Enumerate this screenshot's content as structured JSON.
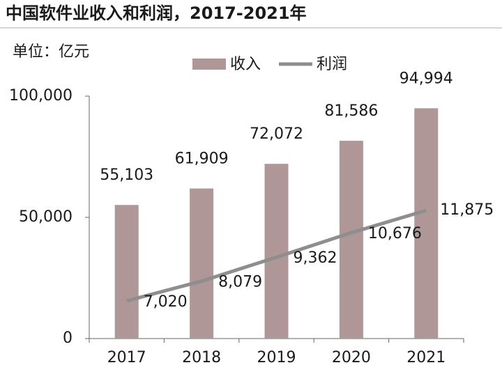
{
  "chart_data": {
    "type": "bar_line",
    "title": "中国软件业收入和利润，2017-2021年",
    "unit_label": "单位：亿元",
    "categories": [
      "2017",
      "2018",
      "2019",
      "2020",
      "2021"
    ],
    "series": [
      {
        "name": "收入",
        "type": "bar",
        "color": "#b09797",
        "values": [
          55103,
          61909,
          72072,
          81586,
          94994
        ],
        "value_labels": [
          "55,103",
          "61,909",
          "72,072",
          "81,586",
          "94,994"
        ]
      },
      {
        "name": "利润",
        "type": "line",
        "axis": "y2",
        "color": "#8e8e8e",
        "values": [
          7020,
          8079,
          9362,
          10676,
          11875
        ],
        "value_labels": [
          "7,020",
          "8,079",
          "9,362",
          "10,676",
          "11,875"
        ]
      }
    ],
    "ylim": [
      0,
      100000
    ],
    "yticks": [
      0,
      {
        "value": 50000,
        "label": "50,000"
      },
      {
        "value": 100000,
        "label": "100,000"
      }
    ],
    "y2lim": [
      5000,
      18000
    ],
    "legend": "top"
  }
}
